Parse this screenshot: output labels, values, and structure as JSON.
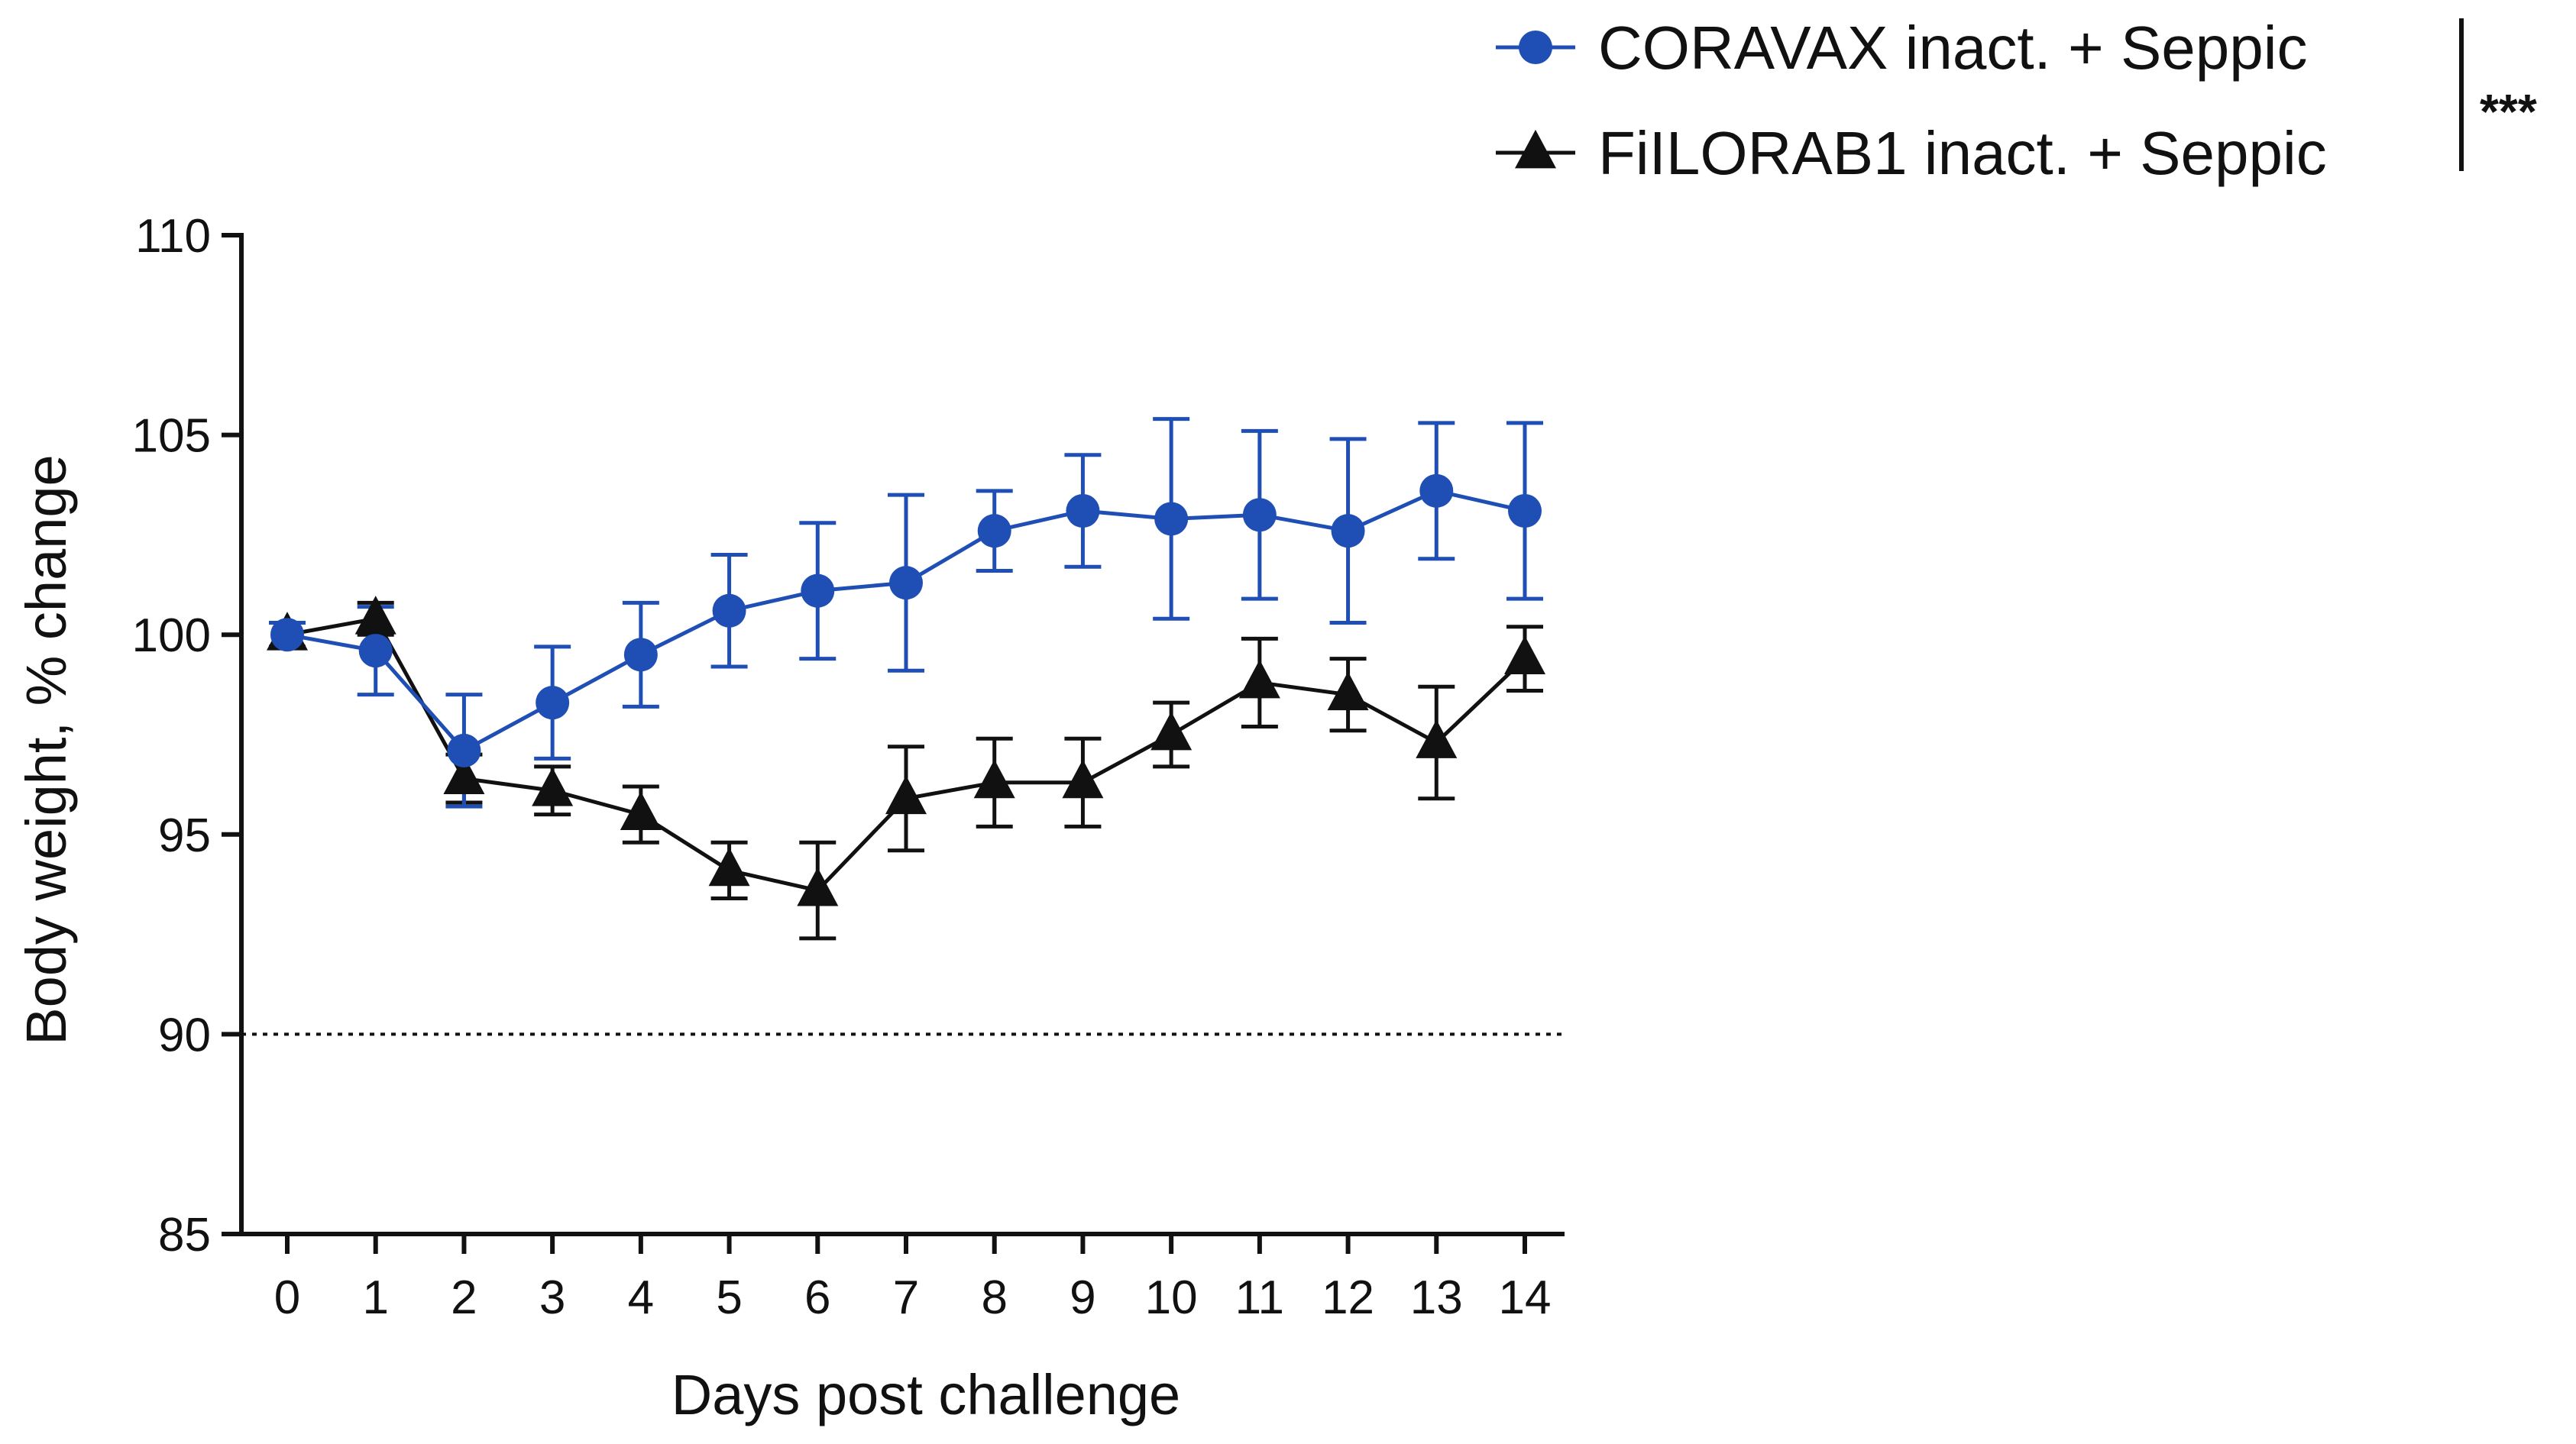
{
  "chart_data": {
    "type": "line",
    "title": "",
    "xlabel": "Days post challenge",
    "ylabel": "Body weight, % change",
    "x": [
      0,
      1,
      2,
      3,
      4,
      5,
      6,
      7,
      8,
      9,
      10,
      11,
      12,
      13,
      14
    ],
    "x_tick_labels": [
      "0",
      "1",
      "2",
      "3",
      "4",
      "5",
      "6",
      "7",
      "8",
      "9",
      "10",
      "11",
      "12",
      "13",
      "14"
    ],
    "ylim": [
      85,
      110
    ],
    "y_ticks": [
      85,
      90,
      95,
      100,
      105,
      110
    ],
    "y_tick_labels": [
      "85",
      "90",
      "95",
      "100",
      "105",
      "110"
    ],
    "reference_line": {
      "y": 90,
      "style": "dotted"
    },
    "grid": false,
    "legend_position": "top-right",
    "significance": "***",
    "series": [
      {
        "name": "CORAVAX inact. + Seppic",
        "marker": "circle",
        "color": "#1f4fb4",
        "values": [
          100.0,
          99.6,
          97.1,
          98.3,
          99.5,
          100.6,
          101.1,
          101.3,
          102.6,
          103.1,
          102.9,
          103.0,
          102.6,
          103.6,
          103.1
        ],
        "error": [
          0.3,
          1.1,
          1.4,
          1.4,
          1.3,
          1.4,
          1.7,
          2.2,
          1.0,
          1.4,
          2.5,
          2.1,
          2.3,
          1.7,
          2.2
        ]
      },
      {
        "name": "FiILORAB1 inact. + Seppic",
        "marker": "triangle",
        "color": "#111111",
        "values": [
          100.0,
          100.4,
          96.4,
          96.1,
          95.5,
          94.1,
          93.6,
          95.9,
          96.3,
          96.3,
          97.5,
          98.8,
          98.5,
          97.3,
          99.4
        ],
        "error": [
          0.3,
          0.4,
          0.6,
          0.6,
          0.7,
          0.7,
          1.2,
          1.3,
          1.1,
          1.1,
          0.8,
          1.1,
          0.9,
          1.4,
          0.8
        ]
      }
    ]
  }
}
